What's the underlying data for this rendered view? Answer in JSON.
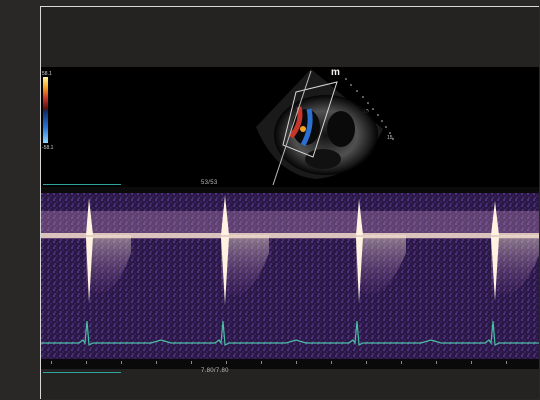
{
  "color_scale": {
    "max_label": "58.1",
    "min_label": "-58.1",
    "colors": [
      "#fff3a0",
      "#f3a321",
      "#c7362a",
      "#5a0f10",
      "#0e2f6a",
      "#2b6fd1",
      "#8ed7ff"
    ]
  },
  "echo": {
    "orientation_marker": "m",
    "depth_labels": [
      "10",
      "15"
    ],
    "frame_counter": "53/53",
    "tissue_color": "#bfbfbf"
  },
  "doppler": {
    "speckle_color": "#6d43a7",
    "baseline_color": "#efd9c9",
    "flow_color": "#f5e4cf"
  },
  "ecg": {
    "trace_color": "#4bbfa6"
  },
  "footer": {
    "readout": "7.80/7.80"
  },
  "accent_teal": "#2fa39c"
}
